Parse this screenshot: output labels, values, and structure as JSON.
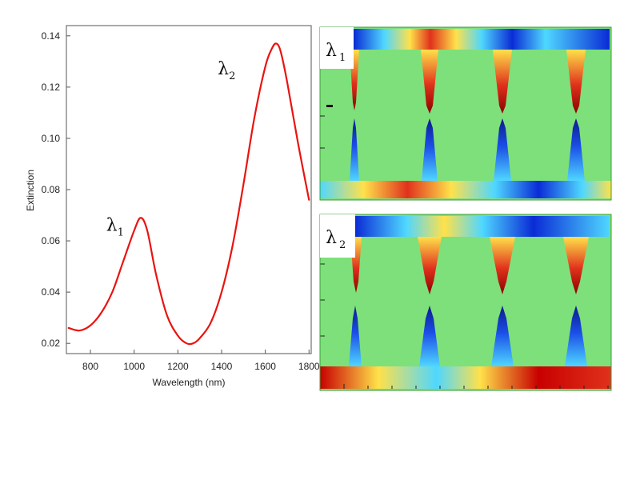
{
  "chart_data": {
    "type": "line",
    "xlabel": "Wavelength (nm)",
    "ylabel": "Extinction",
    "xlim": [
      690,
      1810
    ],
    "ylim": [
      0.016,
      0.144
    ],
    "xticks": [
      "800",
      "1000",
      "1200",
      "1400",
      "1600",
      "1800"
    ],
    "yticks": [
      "0.02",
      "0.04",
      "0.06",
      "0.08",
      "0.10",
      "0.12",
      "0.14"
    ],
    "grid": false,
    "line_color": "#e8140f",
    "series": [
      {
        "x": [
          700,
          750,
          800,
          850,
          900,
          950,
          1000,
          1030,
          1060,
          1100,
          1150,
          1200,
          1240,
          1270,
          1300,
          1350,
          1400,
          1450,
          1500,
          1550,
          1600,
          1630,
          1650,
          1670,
          1700,
          1750,
          1800
        ],
        "y": [
          0.026,
          0.025,
          0.027,
          0.032,
          0.04,
          0.052,
          0.064,
          0.069,
          0.064,
          0.047,
          0.031,
          0.023,
          0.02,
          0.02,
          0.022,
          0.028,
          0.04,
          0.058,
          0.082,
          0.108,
          0.128,
          0.135,
          0.137,
          0.134,
          0.122,
          0.098,
          0.076
        ]
      }
    ]
  },
  "annotations": [
    {
      "symbol": "λ",
      "sub": "1",
      "x": 960,
      "y": 0.064
    },
    {
      "symbol": "λ",
      "sub": "2",
      "x": 1470,
      "y": 0.125
    }
  ],
  "field_panels": {
    "top_label": {
      "symbol": "λ",
      "sub": "1"
    },
    "bottom_label": {
      "symbol": "λ",
      "sub": "2"
    },
    "colors": {
      "background": "#7ee07a",
      "red": "#c80000",
      "yellow": "#ffe14a",
      "blue": "#0a2bd6",
      "cyan": "#4fd7ff"
    }
  }
}
